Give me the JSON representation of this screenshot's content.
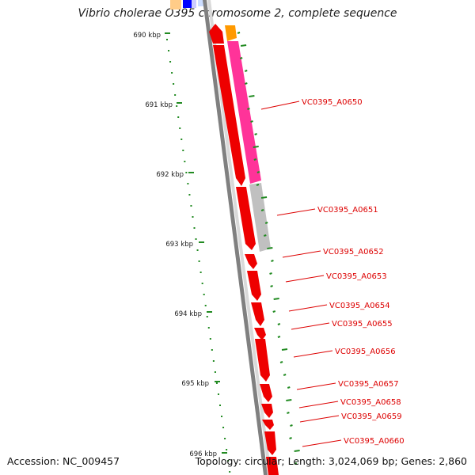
{
  "title": "Vibrio cholerae O395 chromosome 2, complete sequence",
  "accession": "Accession: NC_009457",
  "summary": "Topology: circular; Length: 3,024,069 bp; Genes: 2,860",
  "scale_labels": [
    "690 kbp",
    "691 kbp",
    "692 kbp",
    "693 kbp",
    "694 kbp",
    "695 kbp",
    "696 kbp"
  ],
  "gene_labels": [
    "VC0395_A0650",
    "VC0395_A0651",
    "VC0395_A0652",
    "VC0395_A0653",
    "VC0395_A0654",
    "VC0395_A0655",
    "VC0395_A0656",
    "VC0395_A0657",
    "VC0395_A0658",
    "VC0395_A0659",
    "VC0395_A0660"
  ],
  "colors": {
    "cds_red": "#ee0000",
    "cds_magenta": "#ff3399",
    "cds_gray": "#c0c0c0",
    "cds_orange": "#ff9900",
    "backbone": "#808080",
    "gc_green": "#228b22",
    "label_red": "#dd0000"
  }
}
